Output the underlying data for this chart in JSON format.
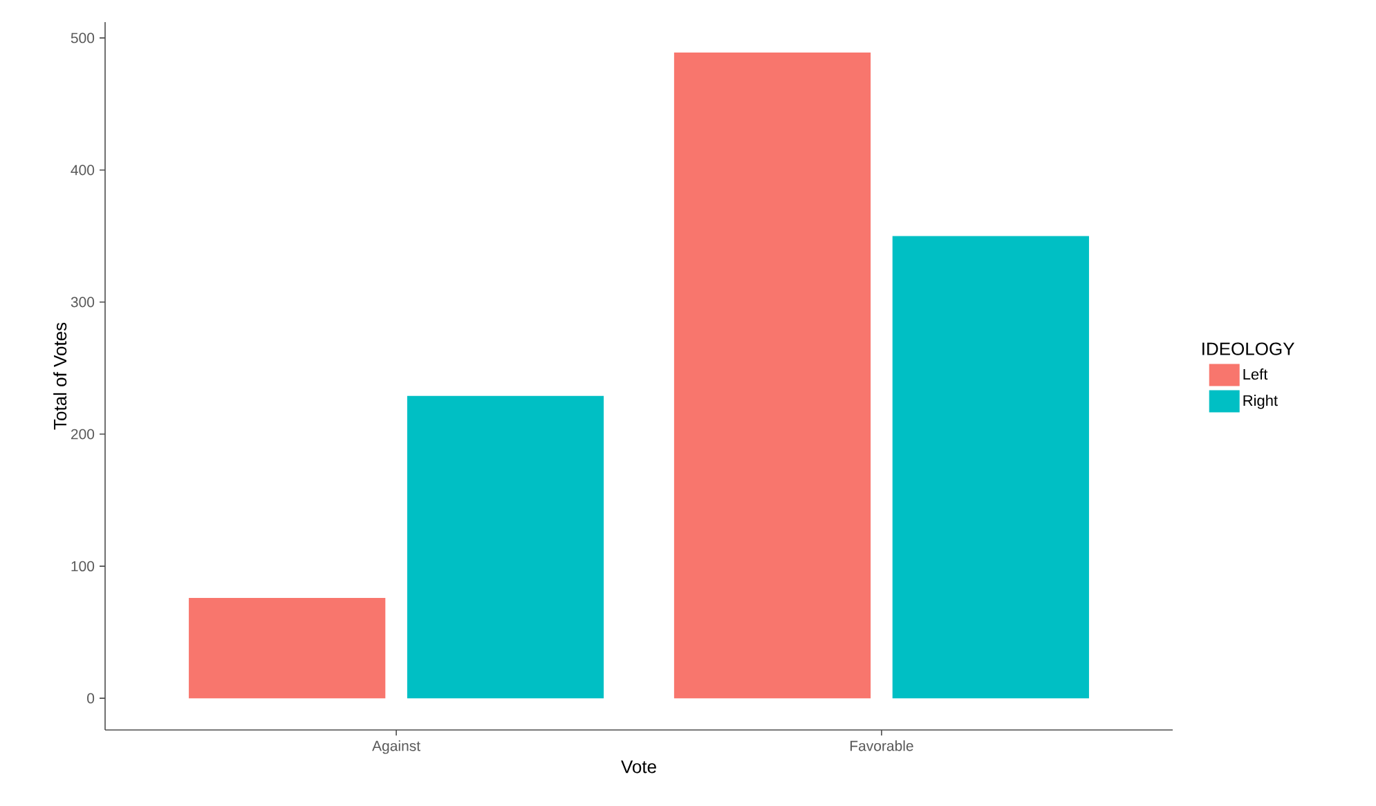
{
  "chart_data": {
    "type": "bar",
    "xlabel": "Vote",
    "ylabel": "Total of Votes",
    "legend_title": "IDEOLOGY",
    "categories": [
      "Against",
      "Favorable"
    ],
    "series": [
      {
        "name": "Left",
        "color": "#f8766d",
        "values": [
          76,
          489
        ]
      },
      {
        "name": "Right",
        "color": "#00bfc4",
        "values": [
          229,
          350
        ]
      }
    ],
    "ylim": [
      -24,
      512
    ],
    "yticks": [
      0,
      100,
      200,
      300,
      400,
      500
    ],
    "grid": false,
    "legend": "right"
  }
}
